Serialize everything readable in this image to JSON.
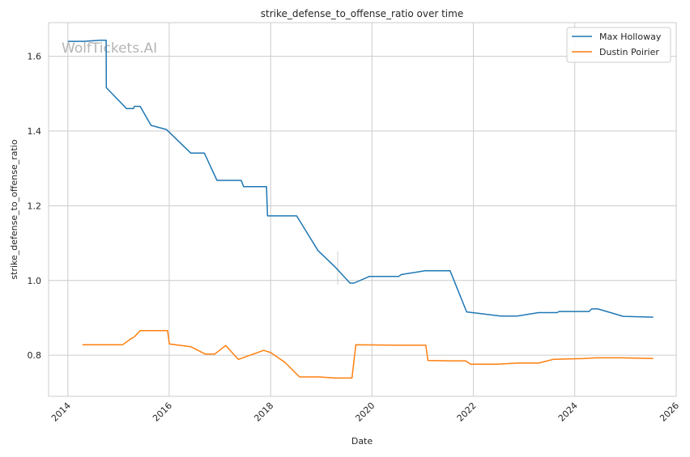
{
  "chart_data": {
    "type": "line",
    "title": "strike_defense_to_offense_ratio over time",
    "xlabel": "Date",
    "ylabel": "strike_defense_to_offense_ratio",
    "watermark": "WolfTickets.AI",
    "xlim": [
      "2013-08-15",
      "2026-01-01"
    ],
    "ylim": [
      0.69,
      1.69
    ],
    "x_ticks": [
      "2014",
      "2016",
      "2018",
      "2020",
      "2022",
      "2024",
      "2026"
    ],
    "y_ticks": [
      "0.8",
      "1.0",
      "1.2",
      "1.4",
      "1.6"
    ],
    "grid": true,
    "legend_position": "top-right",
    "series": [
      {
        "name": "Max Holloway",
        "color": "#1f77b4",
        "points": [
          [
            "2014-01-01",
            1.64
          ],
          [
            "2014-04-26",
            1.64
          ],
          [
            "2014-08-23",
            1.643
          ],
          [
            "2014-10-04",
            1.643
          ],
          [
            "2014-10-05",
            1.516
          ],
          [
            "2015-02-28",
            1.46
          ],
          [
            "2015-04-18",
            1.46
          ],
          [
            "2015-04-25",
            1.466
          ],
          [
            "2015-06-06",
            1.466
          ],
          [
            "2015-08-23",
            1.415
          ],
          [
            "2015-12-12",
            1.404
          ],
          [
            "2016-06-04",
            1.341
          ],
          [
            "2016-09-10",
            1.341
          ],
          [
            "2016-12-10",
            1.268
          ],
          [
            "2017-06-03",
            1.268
          ],
          [
            "2017-06-20",
            1.251
          ],
          [
            "2017-12-02",
            1.251
          ],
          [
            "2017-12-09",
            1.173
          ],
          [
            "2018-07-07",
            1.173
          ],
          [
            "2018-12-08",
            1.08
          ],
          [
            "2019-04-13",
            1.035
          ],
          [
            "2019-07-27",
            0.993
          ],
          [
            "2019-08-25",
            0.993
          ],
          [
            "2019-12-14",
            1.011
          ],
          [
            "2020-07-11",
            1.011
          ],
          [
            "2020-08-01",
            1.016
          ],
          [
            "2021-01-16",
            1.026
          ],
          [
            "2021-07-17",
            1.026
          ],
          [
            "2021-11-13",
            0.916
          ],
          [
            "2022-07-16",
            0.905
          ],
          [
            "2022-11-12",
            0.905
          ],
          [
            "2023-04-15",
            0.914
          ],
          [
            "2023-08-26",
            0.914
          ],
          [
            "2023-09-10",
            0.917
          ],
          [
            "2024-04-13",
            0.917
          ],
          [
            "2024-05-01",
            0.924
          ],
          [
            "2024-06-15",
            0.924
          ],
          [
            "2024-12-14",
            0.904
          ],
          [
            "2025-07-19",
            0.902
          ]
        ]
      },
      {
        "name": "Dustin Poirier",
        "color": "#ff7f0e",
        "points": [
          [
            "2014-04-16",
            0.828
          ],
          [
            "2014-10-04",
            0.828
          ],
          [
            "2015-01-31",
            0.828
          ],
          [
            "2015-04-04",
            0.845
          ],
          [
            "2015-04-25",
            0.849
          ],
          [
            "2015-06-06",
            0.866
          ],
          [
            "2015-08-23",
            0.866
          ],
          [
            "2015-12-20",
            0.866
          ],
          [
            "2016-01-02",
            0.83
          ],
          [
            "2016-06-04",
            0.823
          ],
          [
            "2016-09-17",
            0.803
          ],
          [
            "2016-11-23",
            0.803
          ],
          [
            "2017-02-11",
            0.826
          ],
          [
            "2017-05-13",
            0.789
          ],
          [
            "2017-11-11",
            0.813
          ],
          [
            "2018-01-01",
            0.807
          ],
          [
            "2018-04-14",
            0.781
          ],
          [
            "2018-07-28",
            0.742
          ],
          [
            "2018-12-15",
            0.742
          ],
          [
            "2019-04-13",
            0.739
          ],
          [
            "2019-08-10",
            0.739
          ],
          [
            "2019-09-07",
            0.828
          ],
          [
            "2020-06-27",
            0.827
          ],
          [
            "2021-01-23",
            0.827
          ],
          [
            "2021-02-07",
            0.786
          ],
          [
            "2021-07-10",
            0.785
          ],
          [
            "2021-11-06",
            0.785
          ],
          [
            "2021-12-11",
            0.776
          ],
          [
            "2022-06-25",
            0.776
          ],
          [
            "2022-11-12",
            0.779
          ],
          [
            "2023-04-15",
            0.779
          ],
          [
            "2023-07-29",
            0.789
          ],
          [
            "2024-03-09",
            0.791
          ],
          [
            "2024-06-01",
            0.793
          ],
          [
            "2024-12-01",
            0.793
          ],
          [
            "2025-07-19",
            0.791
          ]
        ]
      }
    ]
  }
}
